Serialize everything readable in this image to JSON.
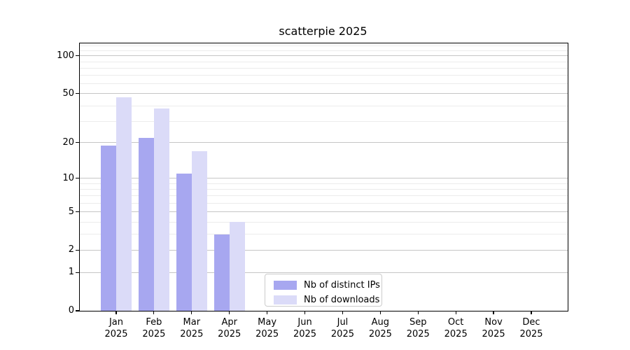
{
  "chart_data": {
    "type": "bar",
    "title": "scatterpie 2025",
    "categories": [
      "Jan",
      "Feb",
      "Mar",
      "Apr",
      "May",
      "Jun",
      "Jul",
      "Aug",
      "Sep",
      "Oct",
      "Nov",
      "Dec"
    ],
    "tick_year": "2025",
    "series": [
      {
        "name": "Nb of distinct IPs",
        "color": "#a7a7f0",
        "values": [
          19,
          22,
          11,
          3,
          0,
          0,
          0,
          0,
          0,
          0,
          0,
          0
        ]
      },
      {
        "name": "Nb of downloads",
        "color": "#dbdbf8",
        "values": [
          47,
          38,
          17,
          4,
          0,
          0,
          0,
          0,
          0,
          0,
          0,
          0
        ]
      }
    ],
    "y_axis": {
      "scale": "log10(value+1)",
      "top_value": 125.7,
      "ticks": [
        0,
        1,
        2,
        5,
        10,
        20,
        50,
        100
      ],
      "minor_ticks": [
        3,
        4,
        6,
        7,
        8,
        9,
        30,
        40,
        60,
        70,
        80,
        90,
        110,
        120
      ]
    },
    "x_axis": {
      "ylim_bottom": 0,
      "grid": true
    },
    "legend": {
      "position": "bottom-center-inside"
    }
  }
}
